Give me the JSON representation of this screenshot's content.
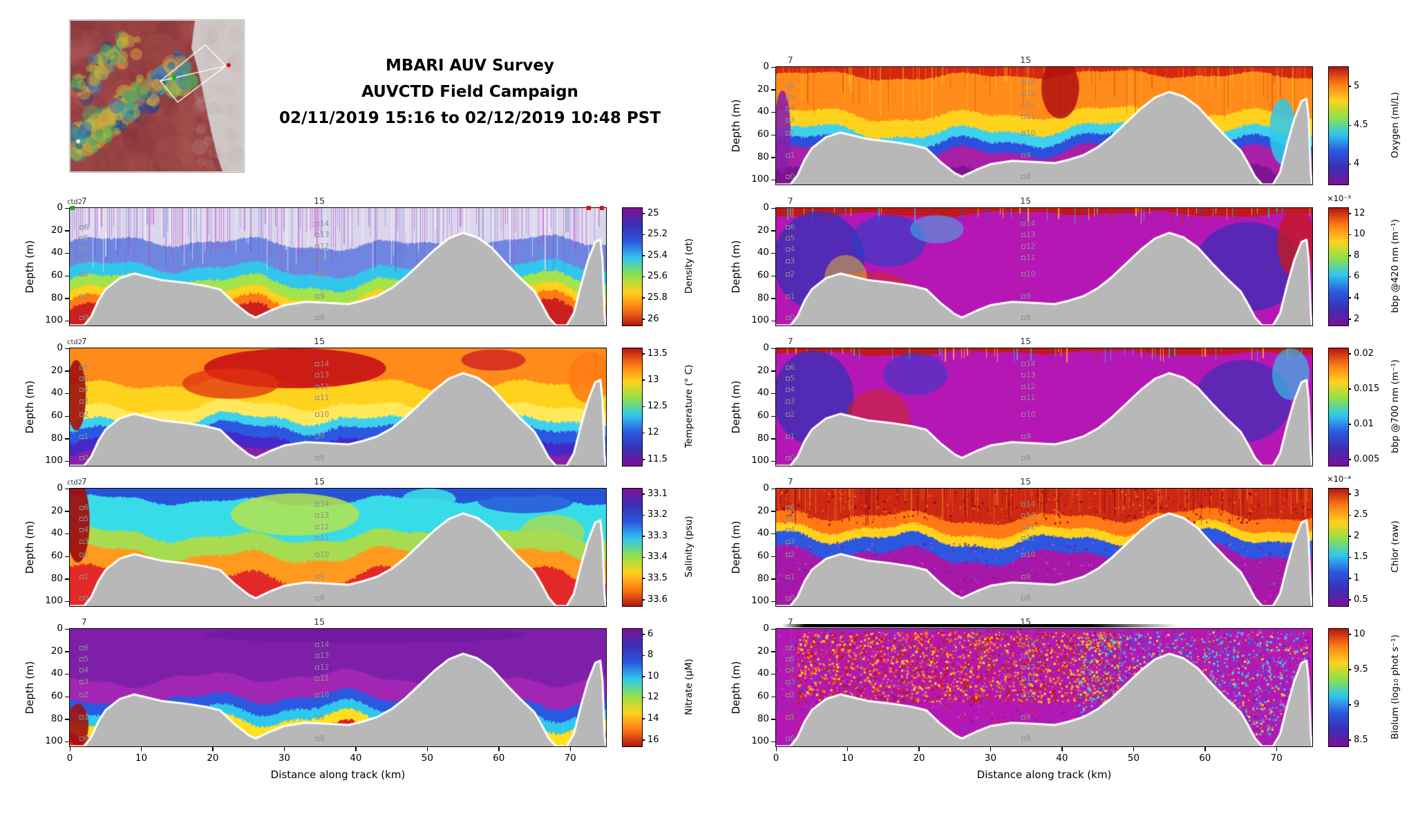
{
  "title": {
    "line1": "MBARI AUV Survey",
    "line2": "AUVCTD Field Campaign",
    "line3": "02/11/2019 15:16 to 02/12/2019 10:48 PST"
  },
  "axis": {
    "xlabel": "Distance along track (km)",
    "ylabel": "Depth (m)",
    "x_ticks": [
      "0",
      "10",
      "20",
      "30",
      "40",
      "50",
      "60",
      "70"
    ],
    "y_ticks": [
      "0",
      "20",
      "40",
      "60",
      "80",
      "100"
    ],
    "x_range_km": [
      0,
      75
    ],
    "depth_range_m": [
      0,
      104
    ]
  },
  "annotations": {
    "ctd_label": "ctd2",
    "top_station_left": "7",
    "top_station_mid": "15",
    "station_col_left": {
      "x_km": 1.5,
      "items": [
        {
          "label": "6",
          "depth_m": 17
        },
        {
          "label": "5",
          "depth_m": 27
        },
        {
          "label": "4",
          "depth_m": 37
        },
        {
          "label": "3",
          "depth_m": 47
        },
        {
          "label": "2",
          "depth_m": 59
        },
        {
          "label": "1",
          "depth_m": 78
        },
        {
          "label": "0",
          "depth_m": 97
        }
      ]
    },
    "station_col_mid": {
      "x_km": 34.5,
      "items": [
        {
          "label": "14",
          "depth_m": 14
        },
        {
          "label": "13",
          "depth_m": 24
        },
        {
          "label": "12",
          "depth_m": 34
        },
        {
          "label": "11",
          "depth_m": 44
        },
        {
          "label": "10",
          "depth_m": 59
        },
        {
          "label": "9",
          "depth_m": 78
        },
        {
          "label": "8",
          "depth_m": 97
        }
      ]
    }
  },
  "colors": {
    "seafloor": "#b8b8b8",
    "colormap_low_to_high": [
      "#7d1096",
      "#3a2fb4",
      "#2c57e0",
      "#2fc8ec",
      "#8ee04c",
      "#ffd21e",
      "#ff7a14",
      "#b41414"
    ]
  },
  "seafloor_profile_km_m": [
    [
      0,
      104
    ],
    [
      2,
      104
    ],
    [
      3,
      96
    ],
    [
      4,
      82
    ],
    [
      5,
      72
    ],
    [
      7,
      62
    ],
    [
      9,
      58
    ],
    [
      11,
      61
    ],
    [
      13,
      64
    ],
    [
      16,
      66
    ],
    [
      19,
      69
    ],
    [
      21,
      72
    ],
    [
      23,
      84
    ],
    [
      25,
      94
    ],
    [
      26,
      97
    ],
    [
      28,
      91
    ],
    [
      30,
      86
    ],
    [
      33,
      83
    ],
    [
      36,
      84
    ],
    [
      39,
      85
    ],
    [
      41,
      82
    ],
    [
      43,
      78
    ],
    [
      45,
      71
    ],
    [
      47,
      61
    ],
    [
      49,
      49
    ],
    [
      51,
      37
    ],
    [
      53,
      27
    ],
    [
      55,
      22
    ],
    [
      57,
      26
    ],
    [
      59,
      35
    ],
    [
      61,
      49
    ],
    [
      63,
      62
    ],
    [
      65,
      74
    ],
    [
      66,
      85
    ],
    [
      67,
      97
    ],
    [
      68,
      104
    ],
    [
      69.5,
      104
    ],
    [
      70.5,
      93
    ],
    [
      71.5,
      68
    ],
    [
      72.5,
      46
    ],
    [
      73.5,
      30
    ],
    [
      74.2,
      28
    ],
    [
      74.5,
      45
    ],
    [
      74.8,
      95
    ],
    [
      75,
      104
    ]
  ],
  "chart_data": [
    {
      "id": "density",
      "type": "heatmap",
      "column": "left",
      "row": 1,
      "show_x": false,
      "ctd2": true,
      "colorbar": {
        "label": "Density (σt)",
        "ticks": [
          "25",
          "25.2",
          "25.4",
          "25.6",
          "25.8",
          "26"
        ],
        "direction": "down"
      },
      "edge_markers": [
        {
          "x_km": 0.4,
          "color": "#00b800"
        },
        {
          "x_km": 72.6,
          "color": "#dd1111"
        },
        {
          "x_km": 74.4,
          "color": "#dd1111"
        }
      ],
      "paint": {
        "seed": 11,
        "jitter": 0.05,
        "bands": [
          {
            "c": "#dcd6ec",
            "to": 0.3
          },
          {
            "c": "#6f86e0",
            "to": 0.52
          },
          {
            "c": "#33c6ec",
            "to": 0.63
          },
          {
            "c": "#a3e34c",
            "to": 0.73
          },
          {
            "c": "#ffd21e",
            "to": 0.81
          },
          {
            "c": "#ff7a14",
            "to": 0.89
          },
          {
            "c": "#cc1f1f",
            "to": 1
          }
        ],
        "stripes": {
          "depth": 0.55,
          "step": 3,
          "p": 0.75,
          "colors": [
            "rgba(196,64,200,0.55)",
            "rgba(120,84,216,0.4)",
            "rgba(255,255,255,0.55)",
            "rgba(84,64,180,0.35)"
          ]
        },
        "blobs": [],
        "speckle": []
      }
    },
    {
      "id": "temperature",
      "type": "heatmap",
      "column": "left",
      "row": 2,
      "show_x": false,
      "ctd2": true,
      "colorbar": {
        "label": "Temperature (° C)",
        "ticks": [
          "13.5",
          "13",
          "12.5",
          "12",
          "11.5"
        ],
        "direction": "up"
      },
      "paint": {
        "seed": 22,
        "jitter": 0.045,
        "bands": [
          {
            "c": "#ff8c1a",
            "to": 0.3
          },
          {
            "c": "#ffd21e",
            "to": 0.5
          },
          {
            "c": "#ffe95a",
            "to": 0.62
          },
          {
            "c": "#3fd0ec",
            "to": 0.7
          },
          {
            "c": "#2c57e0",
            "to": 0.8
          },
          {
            "c": "#4428c8",
            "to": 0.9
          },
          {
            "c": "#8a1fa8",
            "to": 1
          }
        ],
        "blobs": [
          {
            "x": 0.42,
            "y": 0.17,
            "rx": 0.17,
            "ry": 0.17,
            "c": "#c81414",
            "a": 0.92
          },
          {
            "x": 0.3,
            "y": 0.3,
            "rx": 0.09,
            "ry": 0.13,
            "c": "#e03010",
            "a": 0.75
          },
          {
            "x": 0.79,
            "y": 0.1,
            "rx": 0.06,
            "ry": 0.09,
            "c": "#d02020",
            "a": 0.8
          },
          {
            "x": 0.012,
            "y": 0.4,
            "rx": 0.018,
            "ry": 0.3,
            "c": "#a01010",
            "a": 0.9
          },
          {
            "x": 0.97,
            "y": 0.25,
            "rx": 0.04,
            "ry": 0.22,
            "c": "#ff7a14",
            "a": 0.85
          }
        ],
        "speckle": []
      }
    },
    {
      "id": "salinity",
      "type": "heatmap",
      "column": "left",
      "row": 3,
      "show_x": false,
      "ctd2": true,
      "colorbar": {
        "label": "Salinity (psu)",
        "ticks": [
          "33.1",
          "33.2",
          "33.3",
          "33.4",
          "33.5",
          "33.6"
        ],
        "direction": "down"
      },
      "paint": {
        "seed": 33,
        "jitter": 0.05,
        "bands": [
          {
            "c": "#2853d8",
            "to": 0.1
          },
          {
            "c": "#37dce8",
            "to": 0.4
          },
          {
            "c": "#a8dc50",
            "to": 0.56
          },
          {
            "c": "#ff9a1e",
            "to": 0.74
          },
          {
            "c": "#e32828",
            "to": 1
          }
        ],
        "blobs": [
          {
            "x": 0.015,
            "y": 0.28,
            "rx": 0.022,
            "ry": 0.35,
            "c": "#a01010",
            "a": 0.95
          },
          {
            "x": 0.42,
            "y": 0.22,
            "rx": 0.12,
            "ry": 0.18,
            "c": "#b4e44c",
            "a": 0.85
          },
          {
            "x": 0.85,
            "y": 0.1,
            "rx": 0.09,
            "ry": 0.11,
            "c": "#2853d8",
            "a": 0.85
          },
          {
            "x": 0.67,
            "y": 0.09,
            "rx": 0.05,
            "ry": 0.09,
            "c": "#37dce8",
            "a": 0.9
          },
          {
            "x": 0.9,
            "y": 0.38,
            "rx": 0.06,
            "ry": 0.16,
            "c": "#a8dc50",
            "a": 0.8
          }
        ],
        "speckle": []
      }
    },
    {
      "id": "nitrate",
      "type": "heatmap",
      "column": "left",
      "row": 4,
      "show_x": true,
      "ctd2": false,
      "colorbar": {
        "label": "Nitrate (μM)",
        "ticks": [
          "6",
          "8",
          "10",
          "12",
          "14",
          "16"
        ],
        "direction": "down"
      },
      "paint": {
        "seed": 44,
        "jitter": 0.05,
        "bands": [
          {
            "c": "#7d1fa8",
            "to": 0.42
          },
          {
            "c": "#a226b4",
            "to": 0.6
          },
          {
            "c": "#2c57e0",
            "to": 0.7
          },
          {
            "c": "#2fc8ec",
            "to": 0.79
          },
          {
            "c": "#ffe01e",
            "to": 0.89
          },
          {
            "c": "#e02020",
            "to": 1
          }
        ],
        "blobs": [
          {
            "x": 0.015,
            "y": 0.82,
            "rx": 0.02,
            "ry": 0.18,
            "c": "#a01010",
            "a": 0.9
          },
          {
            "x": 0.55,
            "y": 0.05,
            "rx": 0.3,
            "ry": 0.07,
            "c": "#6a16a0",
            "a": 0.5
          }
        ],
        "speckle": []
      }
    },
    {
      "id": "oxygen",
      "type": "heatmap",
      "column": "right",
      "row": 0,
      "show_x": false,
      "ctd2": false,
      "colorbar": {
        "label": "Oxygen (ml/L)",
        "ticks": [
          "5",
          "4.5",
          "4"
        ],
        "tick_pos": [
          0.17,
          0.5,
          0.83
        ],
        "direction": "up"
      },
      "paint": {
        "seed": 55,
        "jitter": 0.05,
        "bands": [
          {
            "c": "#d42810",
            "to": 0.07
          },
          {
            "c": "#ff8c1a",
            "to": 0.4
          },
          {
            "c": "#ffd21e",
            "to": 0.54
          },
          {
            "c": "#3fd0ec",
            "to": 0.63
          },
          {
            "c": "#2c50dc",
            "to": 0.72
          },
          {
            "c": "#a81fa8",
            "to": 0.9
          },
          {
            "c": "#7d1490",
            "to": 1
          }
        ],
        "stripes": {
          "depth": 0.45,
          "step": 3,
          "p": 0.45,
          "colors": [
            "rgba(210,40,16,0.4)",
            "rgba(255,210,30,0.45)",
            "rgba(255,140,26,0.4)"
          ]
        },
        "blobs": [
          {
            "x": 0.53,
            "y": 0.18,
            "rx": 0.035,
            "ry": 0.26,
            "c": "#b01010",
            "a": 0.85
          },
          {
            "x": 0.012,
            "y": 0.55,
            "rx": 0.015,
            "ry": 0.35,
            "c": "#8a1fa8",
            "a": 0.9
          },
          {
            "x": 0.945,
            "y": 0.55,
            "rx": 0.025,
            "ry": 0.28,
            "c": "#2fc8ec",
            "a": 0.85
          }
        ],
        "speckle": []
      }
    },
    {
      "id": "bbp420",
      "type": "heatmap",
      "column": "right",
      "row": 1,
      "show_x": false,
      "ctd2": false,
      "colorbar": {
        "label": "bbp @420 nm (m⁻¹)",
        "ticks": [
          "12",
          "10",
          "8",
          "6",
          "4",
          "2"
        ],
        "direction": "up",
        "exponent": "×10⁻³"
      },
      "paint": {
        "seed": 66,
        "jitter": 0.03,
        "bands": [
          {
            "c": "#c01818",
            "to": 0.05
          },
          {
            "c": "#b517b5",
            "to": 1
          }
        ],
        "stripes": {
          "depth": 0.14,
          "step": 4,
          "p": 0.5,
          "colors": [
            "rgba(255,220,30,0.7)",
            "rgba(40,200,230,0.7)",
            "rgba(200,30,30,0.7)",
            "rgba(40,80,220,0.6)"
          ]
        },
        "blobs": [
          {
            "x": 0.08,
            "y": 0.45,
            "rx": 0.085,
            "ry": 0.42,
            "c": "#3a2fb4",
            "a": 0.8
          },
          {
            "x": 0.21,
            "y": 0.28,
            "rx": 0.07,
            "ry": 0.22,
            "c": "#2c3ec8",
            "a": 0.65
          },
          {
            "x": 0.88,
            "y": 0.5,
            "rx": 0.1,
            "ry": 0.38,
            "c": "#3a2fb4",
            "a": 0.75
          },
          {
            "x": 0.97,
            "y": 0.3,
            "rx": 0.035,
            "ry": 0.3,
            "c": "#c81818",
            "a": 0.75
          },
          {
            "x": 0.17,
            "y": 0.72,
            "rx": 0.09,
            "ry": 0.18,
            "c": "#d42810",
            "a": 0.5
          },
          {
            "x": 0.3,
            "y": 0.18,
            "rx": 0.05,
            "ry": 0.12,
            "c": "#2fc8ec",
            "a": 0.5
          },
          {
            "x": 0.13,
            "y": 0.6,
            "rx": 0.04,
            "ry": 0.2,
            "c": "#ffd21e",
            "a": 0.45
          }
        ],
        "speckle": []
      }
    },
    {
      "id": "bbp700",
      "type": "heatmap",
      "column": "right",
      "row": 2,
      "show_x": false,
      "ctd2": false,
      "colorbar": {
        "label": "bbp @700 nm (m⁻¹)",
        "ticks": [
          "0.02",
          "0.015",
          "0.01",
          "0.005"
        ],
        "direction": "up"
      },
      "paint": {
        "seed": 77,
        "jitter": 0.03,
        "bands": [
          {
            "c": "#c01818",
            "to": 0.04
          },
          {
            "c": "#b517b5",
            "to": 1
          }
        ],
        "stripes": {
          "depth": 0.12,
          "step": 4,
          "p": 0.35,
          "colors": [
            "rgba(255,220,30,0.7)",
            "rgba(40,200,230,0.7)",
            "rgba(200,30,30,0.7)"
          ]
        },
        "blobs": [
          {
            "x": 0.07,
            "y": 0.42,
            "rx": 0.075,
            "ry": 0.4,
            "c": "#3a2fb4",
            "a": 0.8
          },
          {
            "x": 0.19,
            "y": 0.6,
            "rx": 0.06,
            "ry": 0.25,
            "c": "#d42810",
            "a": 0.5
          },
          {
            "x": 0.87,
            "y": 0.45,
            "rx": 0.09,
            "ry": 0.35,
            "c": "#3a2fb4",
            "a": 0.7
          },
          {
            "x": 0.96,
            "y": 0.22,
            "rx": 0.035,
            "ry": 0.22,
            "c": "#2fc8ec",
            "a": 0.65
          },
          {
            "x": 0.26,
            "y": 0.22,
            "rx": 0.06,
            "ry": 0.18,
            "c": "#2c3ec8",
            "a": 0.55
          }
        ],
        "speckle": []
      }
    },
    {
      "id": "chlor",
      "type": "heatmap",
      "column": "right",
      "row": 3,
      "show_x": false,
      "ctd2": false,
      "colorbar": {
        "label": "Chlor (raw)",
        "ticks": [
          "3",
          "2.5",
          "2",
          "1.5",
          "1",
          "0.5"
        ],
        "direction": "up",
        "exponent": "×10⁻⁴"
      },
      "paint": {
        "seed": 88,
        "jitter": 0.06,
        "bands": [
          {
            "c": "#cc2814",
            "to": 0.24
          },
          {
            "c": "#ff7a14",
            "to": 0.35
          },
          {
            "c": "#ffd21e",
            "to": 0.43
          },
          {
            "c": "#2c57e0",
            "to": 0.56
          },
          {
            "c": "#a818a8",
            "to": 1
          }
        ],
        "stripes": {
          "depth": 0.32,
          "step": 3,
          "p": 0.5,
          "colors": [
            "rgba(140,10,10,0.5)",
            "rgba(255,120,20,0.4)",
            "rgba(255,210,30,0.35)"
          ]
        },
        "blobs": [],
        "speckle": [
          {
            "x0": 0,
            "x1": 1,
            "y0": 0.45,
            "y1": 1,
            "colors": [
              "#7d1490",
              "#2c57e0",
              "#d23cd2"
            ],
            "n": 700,
            "r": 2
          },
          {
            "x0": 0,
            "x1": 1,
            "y0": 0,
            "y1": 0.3,
            "colors": [
              "#8a0f0f",
              "#ff5a10"
            ],
            "n": 500,
            "r": 2
          }
        ]
      }
    },
    {
      "id": "biolum",
      "type": "heatmap",
      "column": "right",
      "row": 4,
      "show_x": true,
      "ctd2": false,
      "top_bar": true,
      "colorbar": {
        "label": "Biolum (log₁₀ phot s⁻¹)",
        "ticks": [
          "10",
          "9.5",
          "9",
          "8.5"
        ],
        "direction": "up"
      },
      "paint": {
        "seed": 99,
        "jitter": 0.02,
        "bands": [
          {
            "c": "#b517b5",
            "to": 1
          }
        ],
        "stripes": {
          "depth": 0.85,
          "step": 3,
          "p": 0.4,
          "colors": [
            "rgba(200,20,20,0.15)",
            "rgba(40,200,230,0.12)"
          ]
        },
        "blobs": [],
        "speckle": [
          {
            "x0": 0.04,
            "x1": 0.64,
            "y0": 0.02,
            "y1": 0.62,
            "colors": [
              "#c81414",
              "#ff6a10",
              "#ffd21e",
              "#ff9a1e",
              "#b02020"
            ],
            "n": 2600,
            "r": 2.4
          },
          {
            "x0": 0.56,
            "x1": 0.99,
            "y0": 0.02,
            "y1": 0.9,
            "colors": [
              "#2fc8ec",
              "#37dce8",
              "#2c57e0",
              "#ffd21e"
            ],
            "n": 1700,
            "r": 2.2
          },
          {
            "x0": 0,
            "x1": 1,
            "y0": 0,
            "y1": 1,
            "colors": [
              "#7d1490",
              "#d23cd2",
              "#2c57e0",
              "#e03010"
            ],
            "n": 1600,
            "r": 2
          }
        ]
      }
    }
  ]
}
